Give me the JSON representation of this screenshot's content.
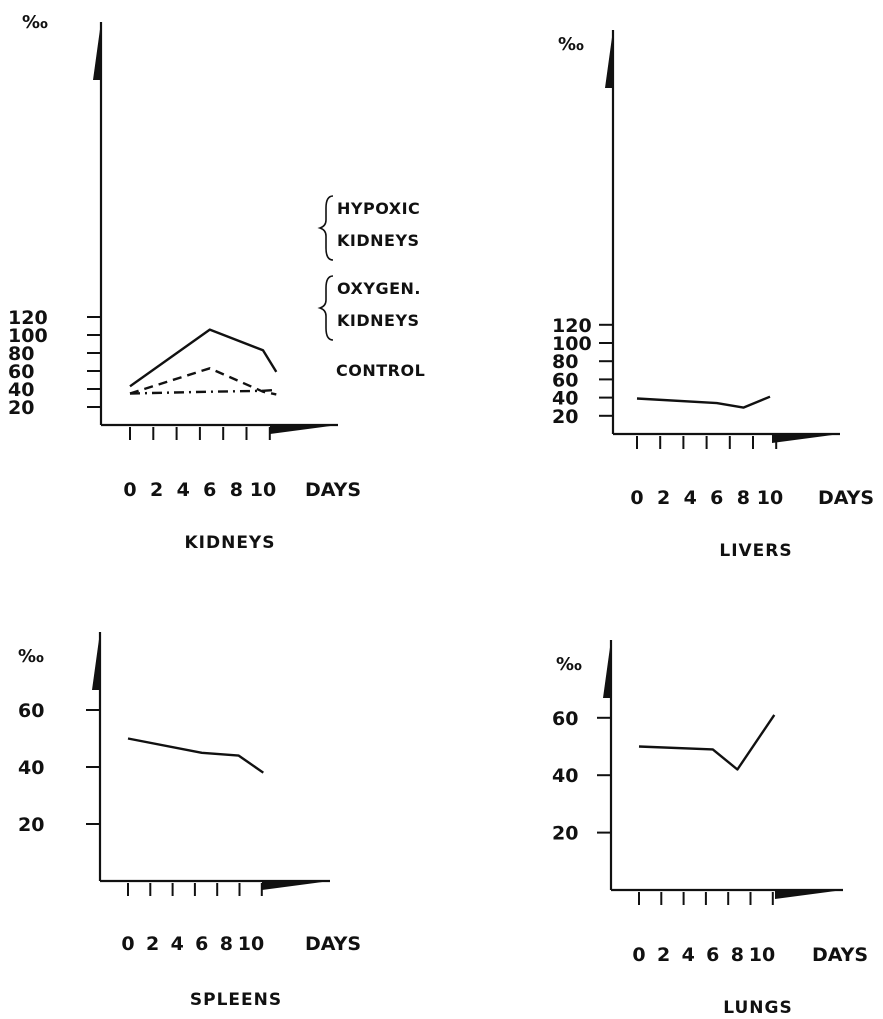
{
  "chart_data": [
    {
      "type": "line",
      "title": "KIDNEYS",
      "ylabel": "‰",
      "xlabel": "DAYS",
      "x_ticks": [
        0,
        2,
        4,
        6,
        8,
        10
      ],
      "y_ticks": [
        20,
        40,
        60,
        80,
        100,
        120
      ],
      "ylim": [
        0,
        130
      ],
      "xlim": [
        -1.5,
        13
      ],
      "series": [
        {
          "name": "HYPOXIC KIDNEYS",
          "style": "solid",
          "x": [
            0,
            6,
            10,
            11
          ],
          "y": [
            43,
            106,
            83,
            59
          ]
        },
        {
          "name": "OXYGEN. KIDNEYS",
          "style": "dashed",
          "x": [
            0,
            6,
            10,
            11
          ],
          "y": [
            35,
            63,
            37,
            34
          ]
        },
        {
          "name": "CONTROL",
          "style": "dashdot",
          "x": [
            0,
            6,
            10,
            11
          ],
          "y": [
            35,
            37,
            38,
            39
          ]
        }
      ],
      "legend": {
        "groups": [
          {
            "lines": [
              "HYPOXIC",
              "KIDNEYS"
            ]
          },
          {
            "lines": [
              "OXYGEN.",
              "KIDNEYS"
            ]
          }
        ],
        "control": "CONTROL"
      }
    },
    {
      "type": "line",
      "title": "LIVERS",
      "ylabel": "‰",
      "xlabel": "DAYS",
      "x_ticks": [
        0,
        2,
        4,
        6,
        8,
        10
      ],
      "y_ticks": [
        20,
        40,
        60,
        80,
        100,
        120
      ],
      "ylim": [
        0,
        130
      ],
      "xlim": [
        -1.5,
        13
      ],
      "series": [
        {
          "x": [
            0,
            6,
            8,
            10
          ],
          "y": [
            39,
            34,
            29,
            41
          ]
        }
      ]
    },
    {
      "type": "line",
      "title": "SPLEENS",
      "ylabel": "‰",
      "xlabel": "DAYS",
      "x_ticks": [
        0,
        2,
        4,
        6,
        8,
        10
      ],
      "y_ticks": [
        20,
        40,
        60
      ],
      "ylim": [
        0,
        70
      ],
      "xlim": [
        -1.5,
        13
      ],
      "series": [
        {
          "x": [
            0,
            6,
            9,
            11
          ],
          "y": [
            50,
            45,
            44,
            38
          ]
        }
      ]
    },
    {
      "type": "line",
      "title": "LUNGS",
      "ylabel": "‰",
      "xlabel": "DAYS",
      "x_ticks": [
        0,
        2,
        4,
        6,
        8,
        10
      ],
      "y_ticks": [
        20,
        40,
        60
      ],
      "ylim": [
        0,
        70
      ],
      "xlim": [
        -1.5,
        13
      ],
      "series": [
        {
          "x": [
            0,
            6,
            8,
            11
          ],
          "y": [
            50,
            49,
            42,
            61
          ]
        }
      ]
    }
  ]
}
